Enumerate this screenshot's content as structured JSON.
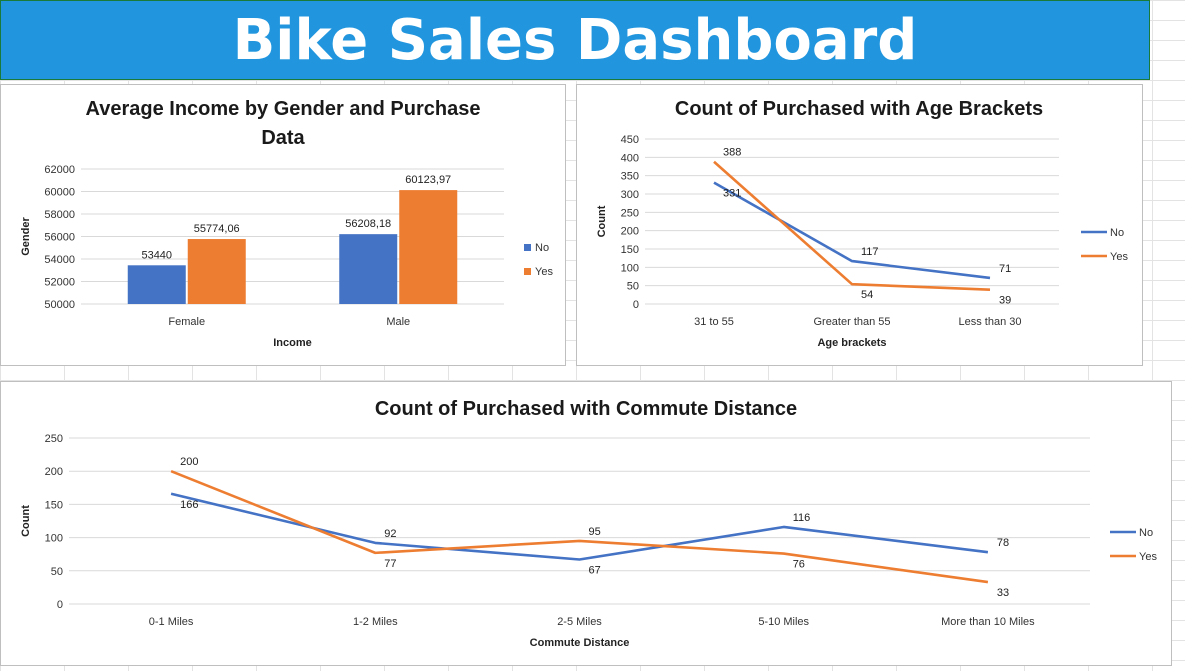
{
  "dashboard": {
    "title": "Bike Sales Dashboard"
  },
  "colors": {
    "no": "#4472c4",
    "yes": "#ed7d31",
    "banner": "#2196de",
    "grid": "#d9d9d9"
  },
  "chart_data": [
    {
      "type": "bar",
      "title": "Average Income by Gender and Purchase Data",
      "title_lines": [
        "Average Income by Gender and Purchase",
        "Data"
      ],
      "xlabel": "Income",
      "ylabel": "Gender",
      "categories": [
        "Female",
        "Male"
      ],
      "series": [
        {
          "name": "No",
          "values": [
            53440,
            56208.18
          ],
          "labels": [
            "53440",
            "56208,18"
          ]
        },
        {
          "name": "Yes",
          "values": [
            55774.06,
            60123.97
          ],
          "labels": [
            "55774,06",
            "60123,97"
          ]
        }
      ],
      "ylim": [
        50000,
        62000
      ],
      "yticks": [
        50000,
        52000,
        54000,
        56000,
        58000,
        60000,
        62000
      ],
      "legend": "right",
      "grid": true
    },
    {
      "type": "line",
      "title": "Count of Purchased with Age Brackets",
      "xlabel": "Age brackets",
      "ylabel": "Count",
      "categories": [
        "31 to 55",
        "Greater than 55",
        "Less than 30"
      ],
      "series": [
        {
          "name": "No",
          "values": [
            331,
            117,
            71
          ]
        },
        {
          "name": "Yes",
          "values": [
            388,
            54,
            39
          ]
        }
      ],
      "ylim": [
        0,
        450
      ],
      "yticks": [
        0,
        50,
        100,
        150,
        200,
        250,
        300,
        350,
        400,
        450
      ],
      "legend": "right",
      "grid": true
    },
    {
      "type": "line",
      "title": "Count of Purchased with Commute Distance",
      "xlabel": "Commute Distance",
      "ylabel": "Count",
      "categories": [
        "0-1 Miles",
        "1-2 Miles",
        "2-5 Miles",
        "5-10 Miles",
        "More than 10 Miles"
      ],
      "series": [
        {
          "name": "No",
          "values": [
            166,
            92,
            67,
            116,
            78
          ]
        },
        {
          "name": "Yes",
          "values": [
            200,
            77,
            95,
            76,
            33
          ]
        }
      ],
      "ylim": [
        0,
        250
      ],
      "yticks": [
        0,
        50,
        100,
        150,
        200,
        250
      ],
      "legend": "right",
      "grid": true
    }
  ]
}
